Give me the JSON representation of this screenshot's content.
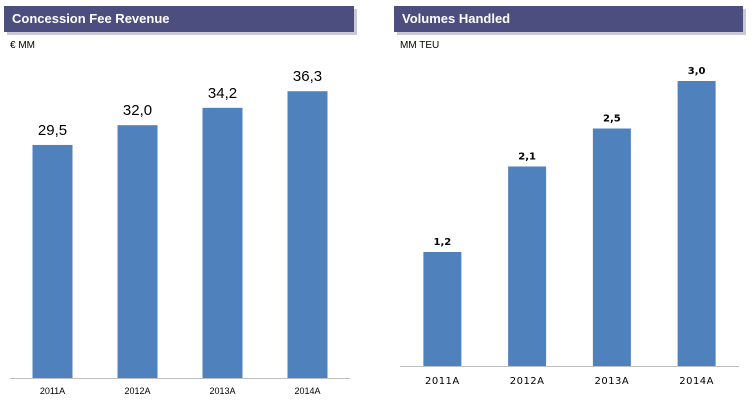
{
  "chart_data": [
    {
      "type": "bar",
      "title": "Concession Fee Revenue",
      "unit": "€ MM",
      "categories": [
        "2011A",
        "2012A",
        "2013A",
        "2014A"
      ],
      "values": [
        29.5,
        32.0,
        34.2,
        36.3
      ],
      "value_labels": [
        "29,5",
        "32,0",
        "34,2",
        "36,3"
      ],
      "ylim": [
        0,
        40
      ],
      "grid": false,
      "legend": "none",
      "bar_color": "#4f81bd",
      "header_color": "#4d4e80"
    },
    {
      "type": "bar",
      "title": "Volumes Handled",
      "unit": "MM TEU",
      "categories": [
        "2011A",
        "2012A",
        "2013A",
        "2014A"
      ],
      "values": [
        1.2,
        2.1,
        2.5,
        3.0
      ],
      "value_labels": [
        "1,2",
        "2,1",
        "2,5",
        "3,0"
      ],
      "ylim": [
        0,
        3.2
      ],
      "grid": false,
      "legend": "none",
      "bar_color": "#4f81bd",
      "header_color": "#4d4e80"
    }
  ]
}
